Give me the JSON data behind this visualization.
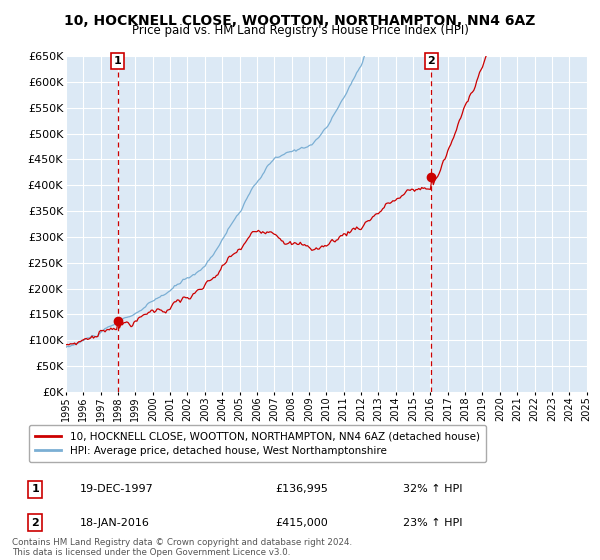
{
  "title": "10, HOCKNELL CLOSE, WOOTTON, NORTHAMPTON, NN4 6AZ",
  "subtitle": "Price paid vs. HM Land Registry's House Price Index (HPI)",
  "bg_color": "#dce9f5",
  "red_line_color": "#cc0000",
  "blue_line_color": "#7bafd4",
  "grid_color": "#ffffff",
  "ylim": [
    0,
    650000
  ],
  "yticks": [
    0,
    50000,
    100000,
    150000,
    200000,
    250000,
    300000,
    350000,
    400000,
    450000,
    500000,
    550000,
    600000,
    650000
  ],
  "x_start_year": 1995,
  "x_end_year": 2025,
  "purchase1_year": 1997.97,
  "purchase1_value": 136995,
  "purchase2_year": 2016.05,
  "purchase2_value": 415000,
  "purchase1_date": "19-DEC-1997",
  "purchase1_price": "£136,995",
  "purchase1_hpi": "32% ↑ HPI",
  "purchase2_date": "18-JAN-2016",
  "purchase2_price": "£415,000",
  "purchase2_hpi": "23% ↑ HPI",
  "legend_line1": "10, HOCKNELL CLOSE, WOOTTON, NORTHAMPTON, NN4 6AZ (detached house)",
  "legend_line2": "HPI: Average price, detached house, West Northamptonshire",
  "footer": "Contains HM Land Registry data © Crown copyright and database right 2024.\nThis data is licensed under the Open Government Licence v3.0."
}
